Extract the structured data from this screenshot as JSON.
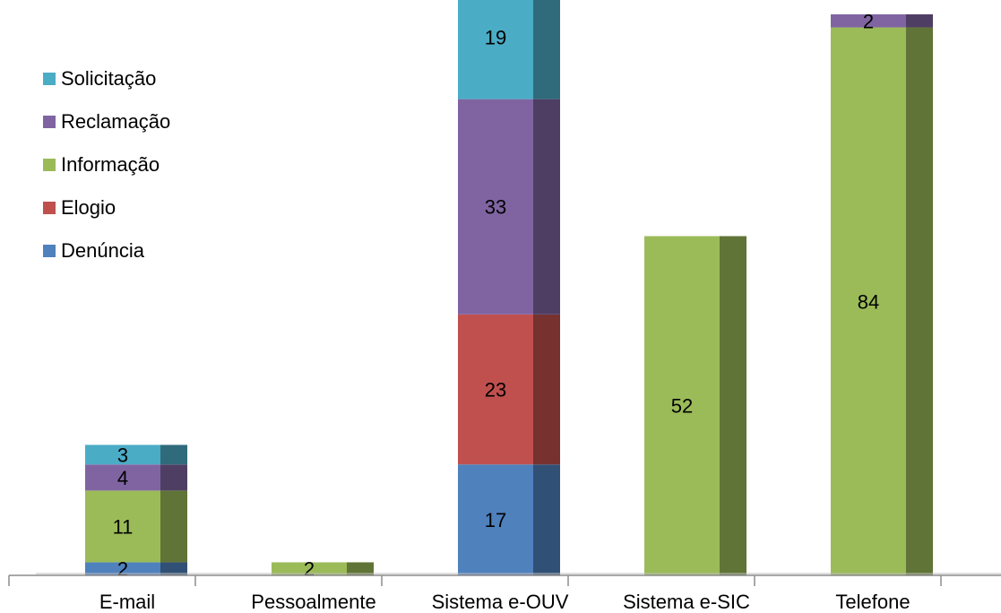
{
  "chart_data": {
    "type": "bar",
    "stacked": true,
    "style": "3d-stacked-column",
    "title": "",
    "xlabel": "",
    "ylabel": "",
    "categories": [
      "E-mail",
      "Pessoalmente",
      "Sistema e-OUV",
      "Sistema e-SIC",
      "Telefone"
    ],
    "series": [
      {
        "name": "Denúncia",
        "color": "#4F81BD",
        "values": [
          2,
          0,
          17,
          0,
          0
        ]
      },
      {
        "name": "Elogio",
        "color": "#C0504D",
        "values": [
          0,
          0,
          23,
          0,
          0
        ]
      },
      {
        "name": "Informação",
        "color": "#9BBB59",
        "values": [
          11,
          2,
          0,
          52,
          84
        ]
      },
      {
        "name": "Reclamação",
        "color": "#8064A2",
        "values": [
          4,
          0,
          33,
          0,
          2
        ]
      },
      {
        "name": "Solicitação",
        "color": "#4BACC6",
        "values": [
          3,
          0,
          19,
          0,
          0
        ]
      }
    ],
    "data_labels": [
      {
        "category": "E-mail",
        "series": "Denúncia",
        "text": "2"
      },
      {
        "category": "E-mail",
        "series": "Informação",
        "text": "11"
      },
      {
        "category": "E-mail",
        "series": "Reclamação",
        "text": "4"
      },
      {
        "category": "E-mail",
        "series": "Solicitação",
        "text": "3"
      },
      {
        "category": "Pessoalmente",
        "series": "Informação",
        "text": "2"
      },
      {
        "category": "Sistema e-OUV",
        "series": "Denúncia",
        "text": "17"
      },
      {
        "category": "Sistema e-OUV",
        "series": "Elogio",
        "text": "23"
      },
      {
        "category": "Sistema e-OUV",
        "series": "Reclamação",
        "text": "33"
      },
      {
        "category": "Sistema e-OUV",
        "series": "Solicitação",
        "text": "19"
      },
      {
        "category": "Sistema e-SIC",
        "series": "Informação",
        "text": "52"
      },
      {
        "category": "Telefone",
        "series": "Informação",
        "text": "84"
      },
      {
        "category": "Telefone",
        "series": "Reclamação",
        "text": "2"
      }
    ],
    "legend": {
      "position": "top-left",
      "order": [
        "Solicitação",
        "Reclamação",
        "Informação",
        "Elogio",
        "Denúncia"
      ]
    },
    "grid": false,
    "ylim": [
      0,
      92
    ]
  }
}
